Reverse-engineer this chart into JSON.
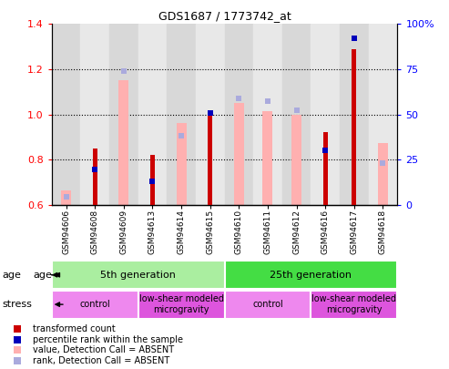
{
  "title": "GDS1687 / 1773742_at",
  "samples": [
    "GSM94606",
    "GSM94608",
    "GSM94609",
    "GSM94613",
    "GSM94614",
    "GSM94615",
    "GSM94610",
    "GSM94611",
    "GSM94612",
    "GSM94616",
    "GSM94617",
    "GSM94618"
  ],
  "transformed_count": [
    null,
    0.85,
    null,
    0.82,
    null,
    1.0,
    null,
    null,
    null,
    0.92,
    1.29,
    null
  ],
  "percentile_rank": [
    null,
    0.755,
    null,
    0.705,
    null,
    1.005,
    null,
    null,
    null,
    0.84,
    1.335,
    null
  ],
  "absent_value": [
    0.665,
    null,
    1.15,
    null,
    0.96,
    null,
    1.05,
    1.015,
    1.0,
    null,
    null,
    0.875
  ],
  "absent_rank": [
    0.635,
    null,
    1.19,
    null,
    0.905,
    null,
    1.07,
    1.06,
    1.02,
    null,
    null,
    0.785
  ],
  "ylim": [
    0.6,
    1.4
  ],
  "ylim_right": [
    0,
    100
  ],
  "yticks_left": [
    0.6,
    0.8,
    1.0,
    1.2,
    1.4
  ],
  "yticks_right": [
    0,
    25,
    50,
    75,
    100
  ],
  "ytick_labels_left": [
    "0.6",
    "0.8",
    "1.0",
    "1.2",
    "1.4"
  ],
  "ytick_labels_right": [
    "0",
    "25",
    "50",
    "75",
    "100%"
  ],
  "color_red": "#CC0000",
  "color_blue_dark": "#0000BB",
  "color_pink": "#FFB0B0",
  "color_lavender": "#AAAADD",
  "bg_even": "#D8D8D8",
  "bg_odd": "#E8E8E8",
  "age_groups": [
    {
      "label": "5th generation",
      "start": 0,
      "end": 5,
      "color": "#AAEEA0"
    },
    {
      "label": "25th generation",
      "start": 6,
      "end": 11,
      "color": "#44DD44"
    }
  ],
  "stress_groups": [
    {
      "label": "control",
      "start": 0,
      "end": 2,
      "color": "#EE88EE"
    },
    {
      "label": "low-shear modeled\nmicrogravity",
      "start": 3,
      "end": 5,
      "color": "#DD55DD"
    },
    {
      "label": "control",
      "start": 6,
      "end": 8,
      "color": "#EE88EE"
    },
    {
      "label": "low-shear modeled\nmicrogravity",
      "start": 9,
      "end": 11,
      "color": "#DD55DD"
    }
  ],
  "pink_bar_width": 0.35,
  "red_bar_width": 0.15,
  "legend_items": [
    {
      "label": "transformed count",
      "color": "#CC0000"
    },
    {
      "label": "percentile rank within the sample",
      "color": "#0000BB"
    },
    {
      "label": "value, Detection Call = ABSENT",
      "color": "#FFB0B0"
    },
    {
      "label": "rank, Detection Call = ABSENT",
      "color": "#AAAADD"
    }
  ]
}
